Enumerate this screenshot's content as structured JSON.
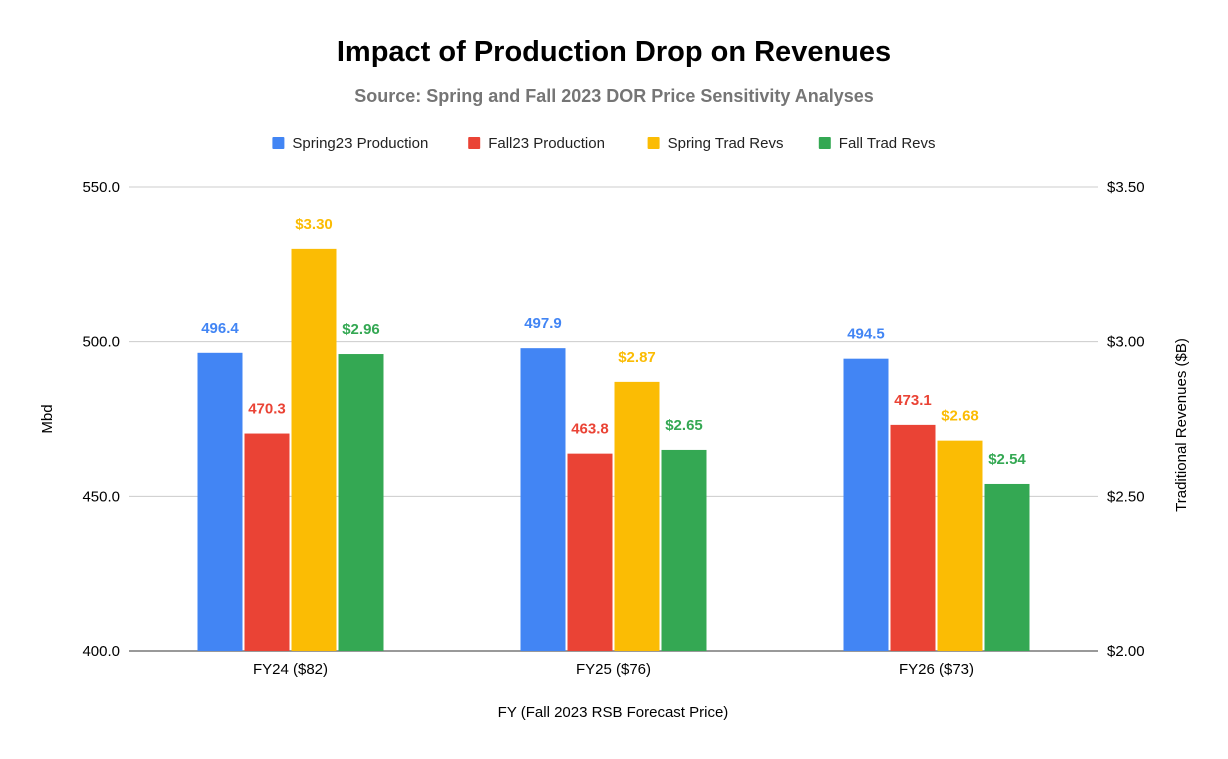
{
  "chart_data": {
    "type": "bar",
    "title": "Impact of Production Drop on Revenues",
    "subtitle": "Source: Spring and Fall 2023 DOR Price Sensitivity Analyses",
    "xlabel": "FY (Fall 2023 RSB Forecast Price)",
    "ylabel_left": "Mbd",
    "ylabel_right": "Traditional Revenues ($B)",
    "categories": [
      "FY24 ($82)",
      "FY25 ($76)",
      "FY26 ($73)"
    ],
    "ylim_left": [
      400,
      550
    ],
    "ylim_right": [
      2.0,
      3.5
    ],
    "left_ticks": [
      "400.0",
      "450.0",
      "500.0",
      "550.0"
    ],
    "right_ticks": [
      "$2.00",
      "$2.50",
      "$3.00",
      "$3.50"
    ],
    "grid": true,
    "legend_position": "top",
    "series": [
      {
        "name": "Spring23 Production",
        "axis": "left",
        "color": "#4285f4",
        "values": [
          496.4,
          497.9,
          494.5
        ],
        "labels": [
          "496.4",
          "497.9",
          "494.5"
        ]
      },
      {
        "name": "Fall23 Production",
        "axis": "left",
        "color": "#ea4335",
        "values": [
          470.3,
          463.8,
          473.1
        ],
        "labels": [
          "470.3",
          "463.8",
          "473.1"
        ]
      },
      {
        "name": "Spring Trad Revs",
        "axis": "right",
        "color": "#fbbc04",
        "values": [
          3.3,
          2.87,
          2.68
        ],
        "labels": [
          "$3.30",
          "$2.87",
          "$2.68"
        ]
      },
      {
        "name": "Fall Trad Revs",
        "axis": "right",
        "color": "#34a853",
        "values": [
          2.96,
          2.65,
          2.54
        ],
        "labels": [
          "$2.96",
          "$2.65",
          "$2.54"
        ]
      }
    ]
  }
}
